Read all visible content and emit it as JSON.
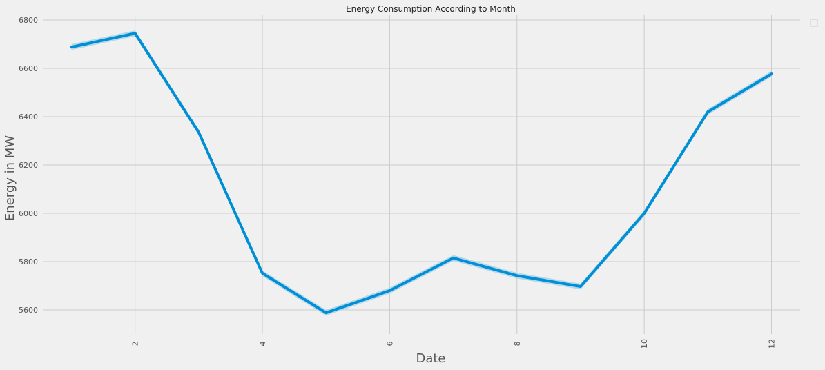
{
  "chart_data": {
    "type": "line",
    "title": "Energy Consumption According to Month",
    "xlabel": "Date",
    "ylabel": "Energy in MW",
    "x": [
      1,
      2,
      3,
      4,
      5,
      6,
      7,
      8,
      9,
      10,
      11,
      12
    ],
    "series": [
      {
        "values": [
          6688,
          6745,
          6335,
          5752,
          5588,
          5680,
          5815,
          5742,
          5697,
          6000,
          6420,
          6577
        ],
        "ci_halfwidth": 12,
        "color": "#008fd5",
        "ci_color": "#a9d3ea"
      }
    ],
    "xticks": [
      2,
      4,
      6,
      8,
      10,
      12
    ],
    "xtick_rotation": "vertical",
    "yticks": [
      5600,
      5800,
      6000,
      6200,
      6400,
      6600,
      6800
    ],
    "xlim": [
      0.55,
      12.45
    ],
    "ylim": [
      5500,
      6820
    ],
    "grid": true,
    "legend": "top-right, empty"
  }
}
